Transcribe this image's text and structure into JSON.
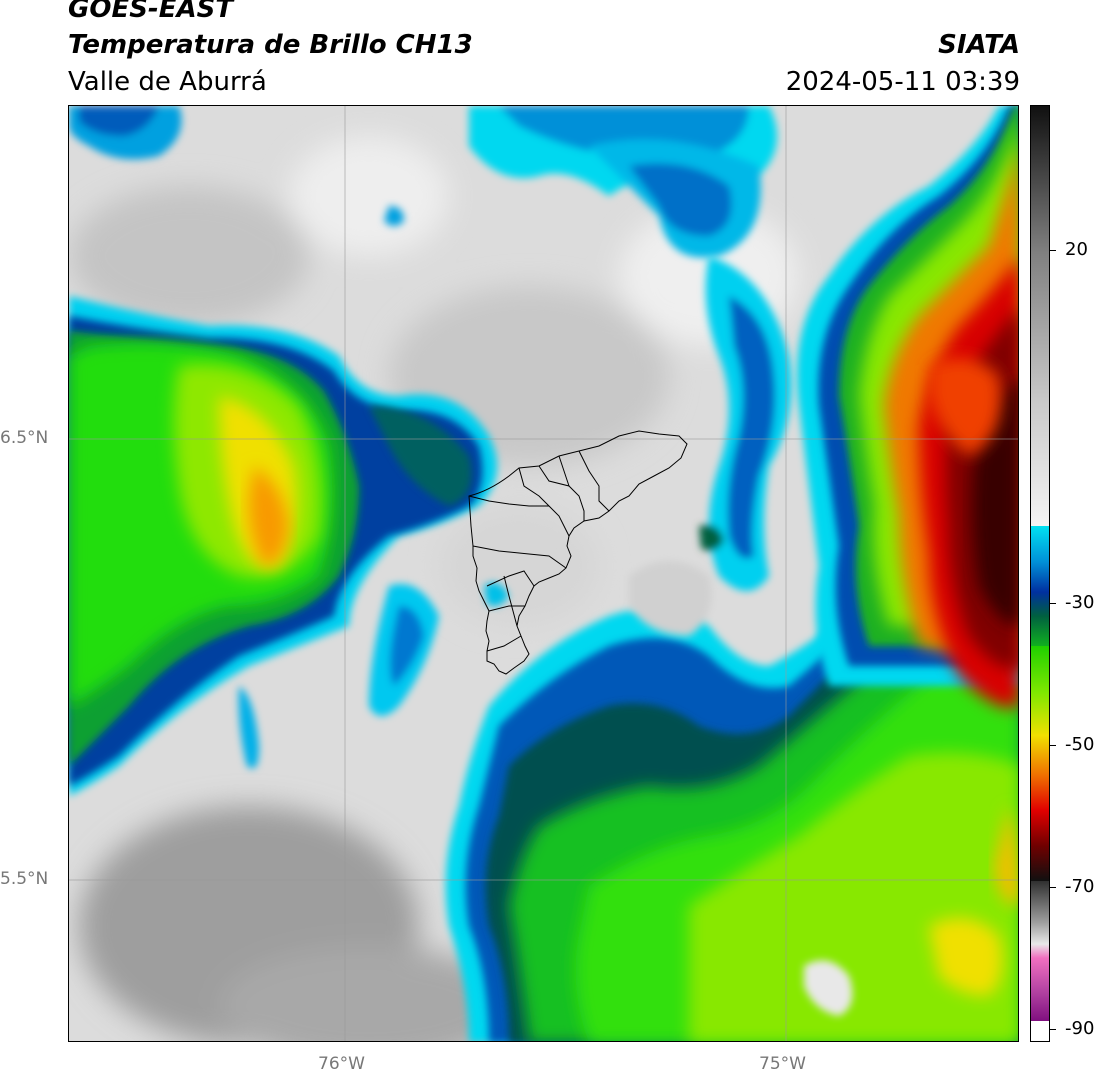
{
  "header": {
    "satellite": "GOES-EAST",
    "product": "Temperatura de Brillo CH13",
    "region": "Valle de Aburrá",
    "agency": "SIATA",
    "datetime": "2024-05-11 03:39"
  },
  "map": {
    "lat_labels": [
      "6.5°N",
      "5.5°N"
    ],
    "lon_labels": [
      "76°W",
      "75°W"
    ]
  },
  "colorbar": {
    "ticks": [
      "20",
      "-30",
      "-50",
      "-70",
      "-90"
    ]
  }
}
